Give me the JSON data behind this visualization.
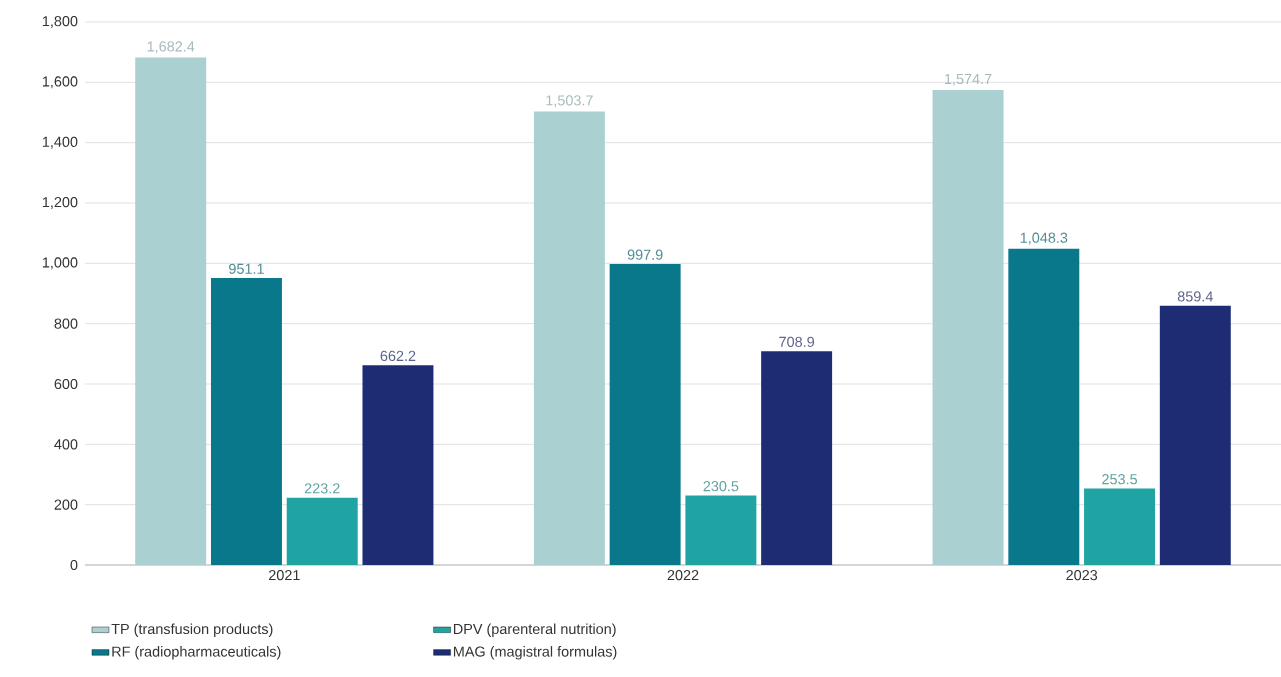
{
  "chart_data": {
    "type": "bar",
    "categories": [
      "2021",
      "2022",
      "2023"
    ],
    "series": [
      {
        "name": "TP (transfusion products)",
        "color": "#aad0d1",
        "values": [
          1682.4,
          1503.7,
          1574.7
        ],
        "value_labels": [
          "1,682.4",
          "1,503.7",
          "1,574.7"
        ]
      },
      {
        "name": "RF (radiopharmaceuticals)",
        "color": "#08788a",
        "values": [
          951.1,
          997.9,
          1048.3
        ],
        "value_labels": [
          "951.1",
          "997.9",
          "1,048.3"
        ]
      },
      {
        "name": "DPV (parenteral nutrition)",
        "color": "#1fa3a3",
        "values": [
          223.2,
          230.5,
          253.5
        ],
        "value_labels": [
          "223.2",
          "230.5",
          "253.5"
        ]
      },
      {
        "name": "MAG (magistral formulas)",
        "color": "#1e2d73",
        "values": [
          662.2,
          708.9,
          859.4
        ],
        "value_labels": [
          "662.2",
          "708.9",
          "859.4"
        ]
      }
    ],
    "ylim": [
      0,
      1800
    ],
    "yticks": [
      0,
      200,
      400,
      600,
      800,
      {
        "value": 1000,
        "label": "1,000"
      },
      {
        "value": 1200,
        "label": "1,200"
      },
      {
        "value": 1400,
        "label": "1,400"
      },
      {
        "value": 1600,
        "label": "1,600"
      },
      {
        "value": 1800,
        "label": "1,800"
      }
    ],
    "grid": "y",
    "legend": "bottom"
  }
}
